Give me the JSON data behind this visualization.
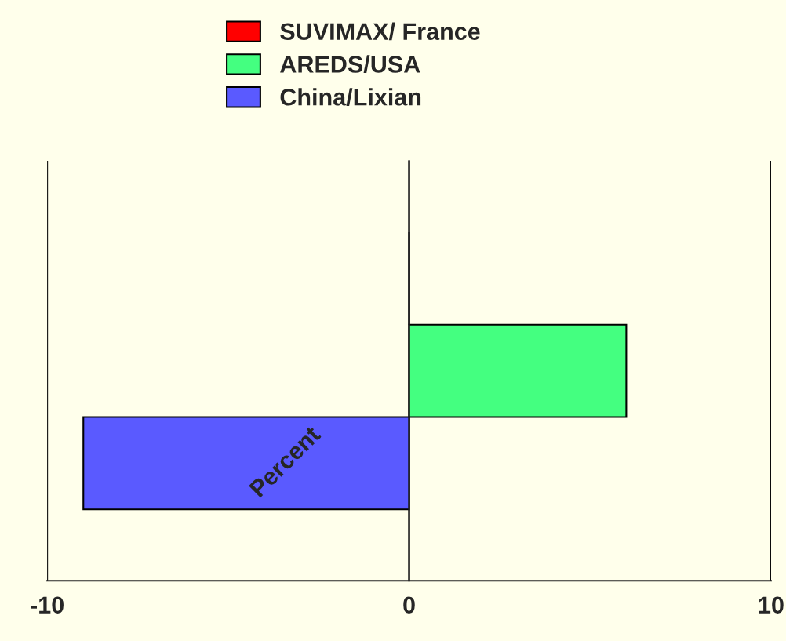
{
  "chart_data": {
    "type": "bar",
    "orientation": "horizontal",
    "categories": [
      null
    ],
    "series": [
      {
        "name": "SUVIMAX/ France",
        "color": "#ff0000",
        "values": [
          0
        ]
      },
      {
        "name": "AREDS/USA",
        "color": "#44ff80",
        "values": [
          6
        ]
      },
      {
        "name": "China/Lixian",
        "color": "#5a5aff",
        "values": [
          -9
        ]
      }
    ],
    "xlim": [
      -10,
      10
    ],
    "xticks": [
      -10,
      0,
      10
    ],
    "grid": "x",
    "legend": "top",
    "annotations": [
      "Percent"
    ]
  }
}
